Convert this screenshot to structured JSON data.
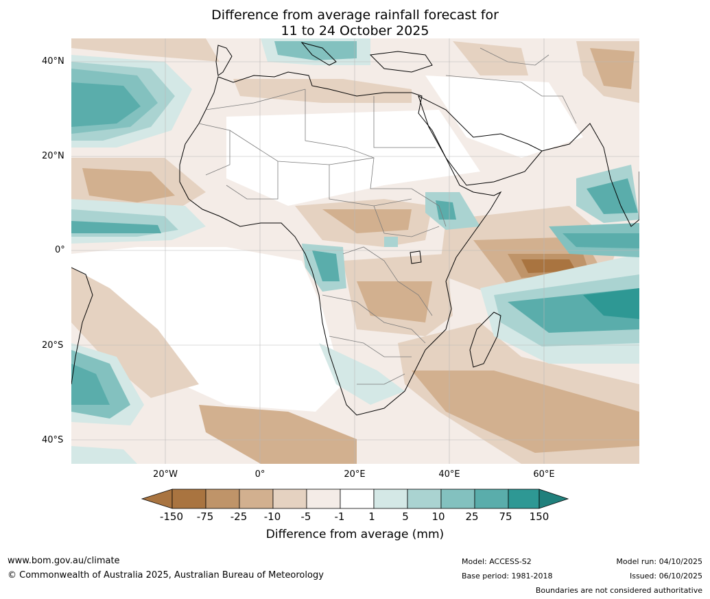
{
  "title": {
    "line1": "Difference from average rainfall forecast for",
    "line2": "11 to 24 October 2025"
  },
  "axes": {
    "latitude_labels": [
      "40°N",
      "20°N",
      "0°",
      "20°S",
      "40°S"
    ],
    "longitude_labels": [
      "20°W",
      "0°",
      "20°E",
      "40°E",
      "60°E"
    ]
  },
  "colorbar": {
    "ticks": [
      "-150",
      "-75",
      "-25",
      "-10",
      "-5",
      "-1",
      "1",
      "5",
      "10",
      "25",
      "75",
      "150"
    ],
    "colors": [
      "#a97440",
      "#bf9469",
      "#d2b08f",
      "#e5d2c1",
      "#f4ece7",
      "#ffffff",
      "#d4e8e6",
      "#aad3d1",
      "#83c1bf",
      "#5aadab",
      "#2e9894",
      "#20807c"
    ],
    "label": "Difference from average (mm)"
  },
  "footer": {
    "website": "www.bom.gov.au/climate",
    "copyright": "© Commonwealth of Australia 2025, Australian Bureau of Meteorology",
    "model": "Model: ACCESS-S2",
    "base_period": "Base period: 1981-2018",
    "model_run": "Model run: 04/10/2025",
    "issued": "Issued: 06/10/2025",
    "disclaimer": "Boundaries are not considered authoritative"
  }
}
